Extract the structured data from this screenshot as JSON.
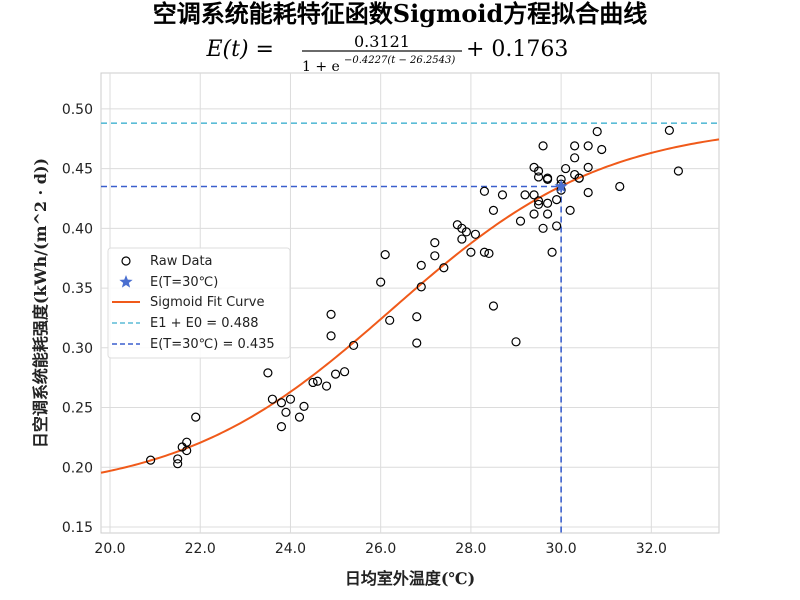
{
  "chart_data": {
    "type": "scatter",
    "title": "空调系统能耗特征函数Sigmoid方程拟合曲线",
    "equation": {
      "lhs": "E(t) =",
      "numerator": "0.3121",
      "denominator_base": "1 + e",
      "denominator_exponent": "−0.4227(t − 26.2543)",
      "rhs": "+ 0.1763"
    },
    "xlabel": "日均室外温度(℃)",
    "ylabel": "日空调系统能耗强度(kWh/(m^2 · d))",
    "xlim": [
      19.8,
      33.5
    ],
    "ylim": [
      0.145,
      0.53
    ],
    "xticks": [
      "20.0",
      "22.0",
      "24.0",
      "26.0",
      "28.0",
      "30.0",
      "32.0"
    ],
    "yticks": [
      "0.15",
      "0.20",
      "0.25",
      "0.30",
      "0.35",
      "0.40",
      "0.45",
      "0.50"
    ],
    "grid": true,
    "legend_position": "center-left",
    "fit": {
      "E1": 0.3121,
      "k": 0.4227,
      "t0": 26.2543,
      "E0": 0.1763
    },
    "series": [
      {
        "name": "Raw Data",
        "marker": "open-circle",
        "points": [
          [
            20.9,
            0.206
          ],
          [
            21.5,
            0.203
          ],
          [
            21.5,
            0.207
          ],
          [
            21.6,
            0.217
          ],
          [
            21.7,
            0.214
          ],
          [
            21.7,
            0.221
          ],
          [
            21.9,
            0.242
          ],
          [
            23.5,
            0.279
          ],
          [
            23.6,
            0.257
          ],
          [
            23.8,
            0.254
          ],
          [
            23.8,
            0.234
          ],
          [
            23.9,
            0.246
          ],
          [
            24.0,
            0.257
          ],
          [
            24.2,
            0.242
          ],
          [
            24.3,
            0.251
          ],
          [
            24.5,
            0.271
          ],
          [
            24.6,
            0.272
          ],
          [
            24.8,
            0.268
          ],
          [
            24.9,
            0.328
          ],
          [
            24.9,
            0.31
          ],
          [
            25.0,
            0.278
          ],
          [
            25.2,
            0.28
          ],
          [
            25.4,
            0.302
          ],
          [
            26.0,
            0.355
          ],
          [
            26.1,
            0.378
          ],
          [
            26.2,
            0.323
          ],
          [
            26.8,
            0.326
          ],
          [
            26.8,
            0.304
          ],
          [
            26.9,
            0.369
          ],
          [
            26.9,
            0.351
          ],
          [
            27.2,
            0.377
          ],
          [
            27.2,
            0.388
          ],
          [
            27.4,
            0.367
          ],
          [
            27.7,
            0.403
          ],
          [
            27.8,
            0.391
          ],
          [
            27.8,
            0.4
          ],
          [
            27.9,
            0.397
          ],
          [
            28.0,
            0.38
          ],
          [
            28.1,
            0.395
          ],
          [
            28.3,
            0.431
          ],
          [
            28.3,
            0.38
          ],
          [
            28.4,
            0.379
          ],
          [
            28.5,
            0.415
          ],
          [
            28.5,
            0.335
          ],
          [
            28.7,
            0.428
          ],
          [
            29.0,
            0.305
          ],
          [
            29.1,
            0.406
          ],
          [
            29.2,
            0.428
          ],
          [
            29.4,
            0.451
          ],
          [
            29.4,
            0.428
          ],
          [
            29.4,
            0.412
          ],
          [
            29.5,
            0.443
          ],
          [
            29.5,
            0.448
          ],
          [
            29.5,
            0.423
          ],
          [
            29.5,
            0.42
          ],
          [
            29.6,
            0.4
          ],
          [
            29.6,
            0.469
          ],
          [
            29.7,
            0.442
          ],
          [
            29.7,
            0.441
          ],
          [
            29.7,
            0.421
          ],
          [
            29.7,
            0.412
          ],
          [
            29.8,
            0.38
          ],
          [
            29.9,
            0.424
          ],
          [
            29.9,
            0.402
          ],
          [
            30.0,
            0.441
          ],
          [
            30.0,
            0.432
          ],
          [
            30.0,
            0.437
          ],
          [
            30.1,
            0.45
          ],
          [
            30.2,
            0.415
          ],
          [
            30.3,
            0.469
          ],
          [
            30.3,
            0.459
          ],
          [
            30.3,
            0.445
          ],
          [
            30.4,
            0.442
          ],
          [
            30.4,
            0.442
          ],
          [
            30.6,
            0.469
          ],
          [
            30.6,
            0.451
          ],
          [
            30.6,
            0.43
          ],
          [
            30.8,
            0.481
          ],
          [
            30.9,
            0.466
          ],
          [
            31.3,
            0.435
          ],
          [
            32.4,
            0.482
          ],
          [
            32.6,
            0.448
          ]
        ]
      },
      {
        "name": "E(T=30℃)",
        "marker": "star",
        "color": "#4a6fd0",
        "points": [
          [
            30.0,
            0.435
          ]
        ]
      },
      {
        "name": "Sigmoid Fit Curve",
        "line": "solid",
        "color": "#f05a1a"
      },
      {
        "name": "E1 + E0 = 0.488",
        "line": "dashed",
        "color": "#5bbcd6",
        "y": 0.488
      },
      {
        "name": "E(T=30℃) = 0.435",
        "line": "dashed",
        "color": "#3a5fcd",
        "x": 30.0,
        "y": 0.435
      }
    ]
  }
}
